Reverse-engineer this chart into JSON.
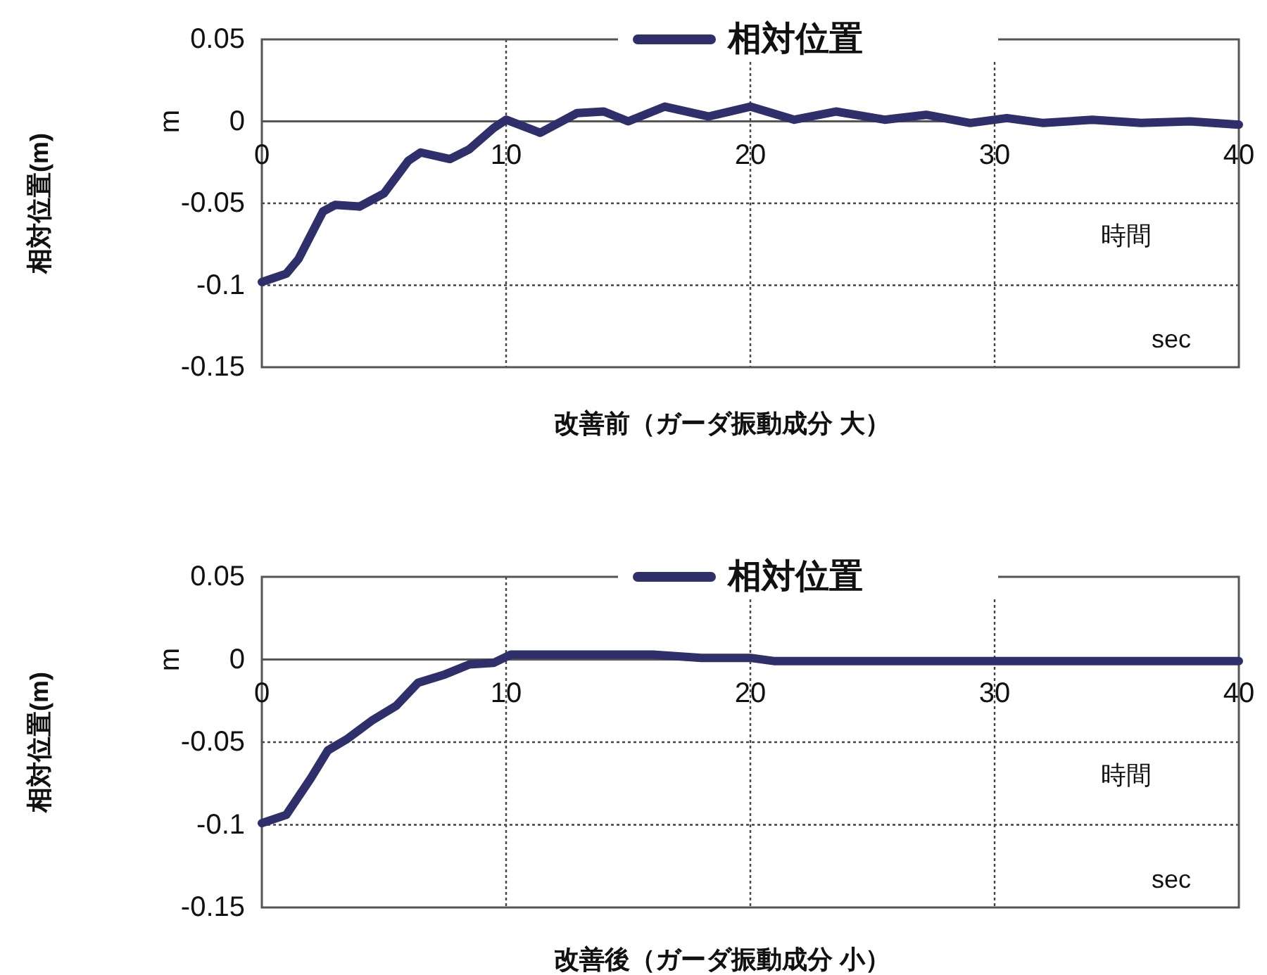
{
  "chart_data": [
    {
      "type": "line",
      "title": "改善前（ガーダ振動成分 大）",
      "xlabel": "時間",
      "ylabel": "相対位置(m)",
      "annotations": [
        "m",
        "sec"
      ],
      "legend": "top",
      "grid": true,
      "line_style": "solid",
      "xlim": [
        0,
        40
      ],
      "ylim": [
        -0.15,
        0.05
      ],
      "xticks": [
        0,
        10,
        20,
        30,
        40
      ],
      "yticks": [
        0.05,
        0,
        -0.05,
        -0.1,
        -0.15
      ],
      "x": [
        0,
        1,
        1.5,
        2.5,
        3,
        4,
        5,
        6,
        6.5,
        7.7,
        8.5,
        9.5,
        10,
        11.4,
        12.9,
        14,
        15,
        16.5,
        18.3,
        20,
        21.8,
        23.5,
        25.5,
        27.2,
        29,
        30.5,
        32,
        34,
        36,
        38,
        40
      ],
      "series": [
        {
          "name": "相対位置",
          "color": "#2e2f6b",
          "values": [
            -0.098,
            -0.093,
            -0.084,
            -0.055,
            -0.051,
            -0.052,
            -0.044,
            -0.024,
            -0.019,
            -0.023,
            -0.017,
            -0.004,
            0.001,
            -0.007,
            0.005,
            0.006,
            0,
            0.009,
            0.003,
            0.009,
            0.001,
            0.006,
            0.001,
            0.004,
            -0.001,
            0.002,
            -0.001,
            0.001,
            -0.001,
            0,
            -0.002
          ]
        }
      ]
    },
    {
      "type": "line",
      "title": "改善後（ガーダ振動成分 小）",
      "xlabel": "時間",
      "ylabel": "相対位置(m)",
      "annotations": [
        "m",
        "sec"
      ],
      "legend": "top",
      "grid": true,
      "line_style": "solid",
      "xlim": [
        0,
        40
      ],
      "ylim": [
        -0.15,
        0.05
      ],
      "xticks": [
        0,
        10,
        20,
        30,
        40
      ],
      "yticks": [
        0.05,
        0,
        -0.05,
        -0.1,
        -0.15
      ],
      "x": [
        0,
        1,
        2,
        2.7,
        3.5,
        4.5,
        5.5,
        6.4,
        7.5,
        8.5,
        9.5,
        10.2,
        12,
        14,
        16,
        18,
        20,
        21,
        25,
        30,
        35,
        40
      ],
      "series": [
        {
          "name": "相対位置",
          "color": "#2e2f6b",
          "values": [
            -0.099,
            -0.094,
            -0.072,
            -0.055,
            -0.048,
            -0.037,
            -0.028,
            -0.014,
            -0.009,
            -0.003,
            -0.002,
            0.003,
            0.003,
            0.003,
            0.003,
            0.001,
            0.001,
            -0.001,
            -0.001,
            -0.001,
            -0.001,
            -0.001
          ]
        }
      ]
    }
  ]
}
